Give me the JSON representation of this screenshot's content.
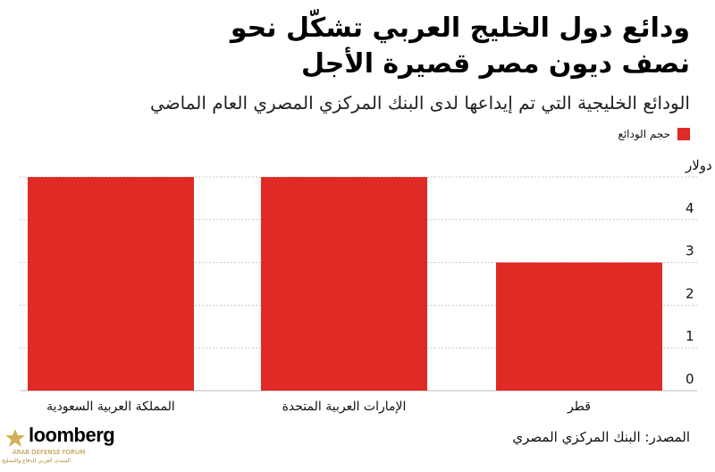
{
  "header": {
    "title_line1": "ودائع دول الخليج العربي تشكّل نحو",
    "title_line2": "نصف ديون مصر قصيرة الأجل",
    "subtitle": "الودائع الخليجية التي تم إيداعها لدى البنك المركزي المصري العام الماضي"
  },
  "legend": {
    "label": "حجم الودائع",
    "color": "#df2a26"
  },
  "chart_data": {
    "type": "bar",
    "categories": [
      "المملكة العربية السعودية",
      "الإمارات العربية المتحدة",
      "قطر"
    ],
    "values": [
      5,
      5,
      3
    ],
    "ylim": [
      0,
      5
    ],
    "yticks": [
      0,
      1,
      2,
      3,
      4,
      5
    ],
    "ytick_labels": [
      "0",
      "1",
      "2",
      "3",
      "4",
      "5 مليارات دولار"
    ],
    "bar_color": "#df2a26",
    "grid": true
  },
  "footer": {
    "source": "المصدر: البنك المركزي المصري",
    "logo": "loomberg",
    "watermark_line1": "ARAB DEFENSE FORUM",
    "watermark_line2": "المنتدى العربي للدفاع والتسليح"
  }
}
